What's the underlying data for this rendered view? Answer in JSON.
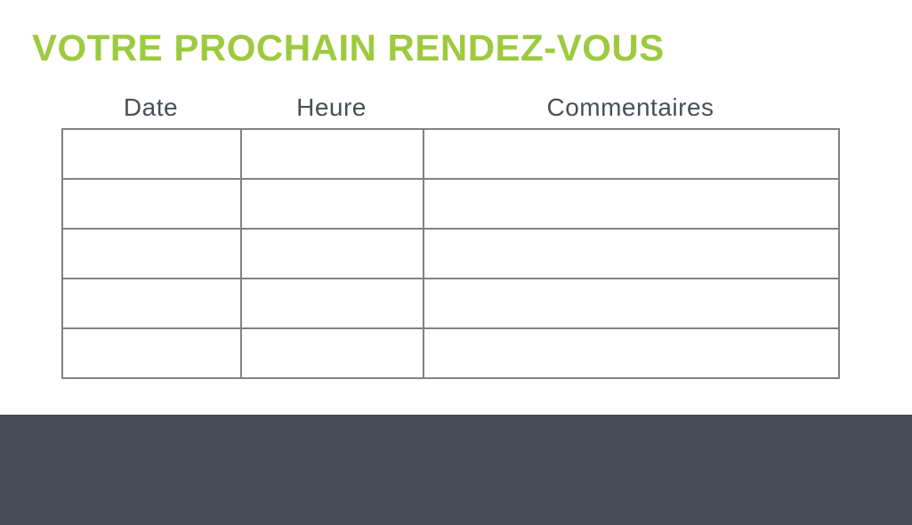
{
  "page": {
    "title": "VOTRE PROCHAIN RENDEZ-VOUS"
  },
  "table": {
    "columns": [
      {
        "key": "date",
        "label": "Date"
      },
      {
        "key": "heure",
        "label": "Heure"
      },
      {
        "key": "commentaires",
        "label": "Commentaires"
      }
    ],
    "rows": [
      {
        "date": "",
        "heure": "",
        "commentaires": ""
      },
      {
        "date": "",
        "heure": "",
        "commentaires": ""
      },
      {
        "date": "",
        "heure": "",
        "commentaires": ""
      },
      {
        "date": "",
        "heure": "",
        "commentaires": ""
      },
      {
        "date": "",
        "heure": "",
        "commentaires": ""
      }
    ]
  },
  "colors": {
    "title_green": "#9DCA3E",
    "heading_text": "#4A4E57",
    "table_border": "#7E8287",
    "footer_background": "#474B54"
  }
}
